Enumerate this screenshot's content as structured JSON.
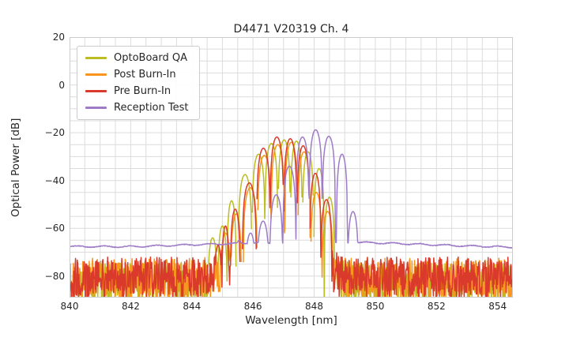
{
  "chart_data": {
    "type": "line",
    "title": "D4471 V20319 Ch. 4",
    "xlabel": "Wavelength [nm]",
    "ylabel": "Optical Power [dB]",
    "xlim": [
      840,
      854.5
    ],
    "ylim": [
      -89,
      20
    ],
    "x_ticks": {
      "values": [
        840,
        842,
        844,
        846,
        848,
        850,
        852,
        854
      ],
      "labels": [
        "840",
        "842",
        "844",
        "846",
        "848",
        "850",
        "852",
        "854"
      ]
    },
    "y_ticks": {
      "values": [
        20,
        0,
        -20,
        -40,
        -60,
        -80
      ],
      "labels": [
        "20",
        "0",
        "−20",
        "−40",
        "−60",
        "−80"
      ]
    },
    "grid": {
      "on": true,
      "minor_x_step_nm": 0.5,
      "minor_y_step_db": 5,
      "color": "#dcdcdc",
      "frame_color": "#cccccc"
    },
    "legend": {
      "position": "upper-left"
    },
    "series": [
      {
        "name": "OptoBoard QA",
        "color": "#bcbd22",
        "seed": 7,
        "modes": [
          [
            844.68,
            -64
          ],
          [
            845.0,
            -59
          ],
          [
            845.3,
            -48.5
          ],
          [
            845.74,
            -37.5
          ],
          [
            846.18,
            -29
          ],
          [
            846.6,
            -24.5
          ],
          [
            847.02,
            -23
          ],
          [
            847.42,
            -23.5
          ],
          [
            847.8,
            -28
          ],
          [
            848.16,
            -35
          ],
          [
            848.5,
            -47
          ]
        ],
        "noise": {
          "ranges": [
            [
              840,
              845.15
            ],
            [
              848.62,
              854.5
            ]
          ],
          "mean": -82.5,
          "amp": 8,
          "ramps": [
            [
              844.2,
              845.15,
              4
            ],
            [
              849.3,
              848.62,
              3
            ]
          ]
        }
      },
      {
        "name": "Post Burn-In",
        "color": "#f8951d",
        "seed": 13,
        "modes": [
          [
            845.1,
            -62
          ],
          [
            845.45,
            -54
          ],
          [
            845.91,
            -43
          ],
          [
            846.37,
            -29.5
          ],
          [
            846.81,
            -25
          ],
          [
            847.25,
            -24
          ],
          [
            847.67,
            -28
          ],
          [
            848.07,
            -45
          ],
          [
            848.44,
            -53
          ]
        ],
        "noise": {
          "ranges": [
            [
              840,
              845.4
            ],
            [
              848.55,
              854.5
            ]
          ],
          "mean": -81,
          "amp": 8.5,
          "ramps": [
            [
              844.3,
              845.4,
              5
            ],
            [
              849.1,
              848.55,
              3
            ]
          ]
        }
      },
      {
        "name": "Pre Burn-In",
        "color": "#d93a2b",
        "seed": 29,
        "modes": [
          [
            844.86,
            -67
          ],
          [
            845.1,
            -59
          ],
          [
            845.42,
            -52
          ],
          [
            845.88,
            -41
          ],
          [
            846.34,
            -26.5
          ],
          [
            846.78,
            -21.8
          ],
          [
            847.22,
            -22.5
          ],
          [
            847.64,
            -25.5
          ],
          [
            848.04,
            -37
          ],
          [
            848.4,
            -48
          ]
        ],
        "noise": {
          "ranges": [
            [
              840,
              845.38
            ],
            [
              848.52,
              854.5
            ]
          ],
          "mean": -80.5,
          "amp": 8.5,
          "ramps": [
            [
              844.3,
              845.38,
              5
            ],
            [
              849.1,
              848.52,
              3
            ]
          ]
        }
      },
      {
        "name": "Reception Test",
        "color": "#9d7bc7",
        "seed": 101,
        "modes": [
          [
            845.55,
            -65
          ],
          [
            845.92,
            -62
          ],
          [
            846.33,
            -57
          ],
          [
            846.76,
            -46
          ],
          [
            847.19,
            -34
          ],
          [
            847.62,
            -21.8
          ],
          [
            848.05,
            -18.8
          ],
          [
            848.48,
            -21.5
          ],
          [
            848.91,
            -29
          ],
          [
            849.27,
            -53
          ]
        ],
        "floor": [
          [
            840,
            -67.6
          ],
          [
            842,
            -67.7
          ],
          [
            844,
            -66.9
          ],
          [
            846,
            -66.1
          ],
          [
            848.5,
            -66.3
          ],
          [
            849.5,
            -65.9
          ],
          [
            851,
            -66.5
          ],
          [
            853,
            -67.4
          ],
          [
            854.5,
            -67.9
          ]
        ]
      }
    ]
  }
}
